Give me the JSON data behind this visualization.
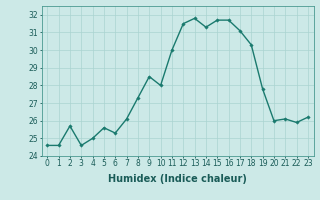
{
  "x": [
    0,
    1,
    2,
    3,
    4,
    5,
    6,
    7,
    8,
    9,
    10,
    11,
    12,
    13,
    14,
    15,
    16,
    17,
    18,
    19,
    20,
    21,
    22,
    23
  ],
  "y": [
    24.6,
    24.6,
    25.7,
    24.6,
    25.0,
    25.6,
    25.3,
    26.1,
    27.3,
    28.5,
    28.0,
    30.0,
    31.5,
    31.8,
    31.3,
    31.7,
    31.7,
    31.1,
    30.3,
    27.8,
    26.0,
    26.1,
    25.9,
    26.2
  ],
  "line_color": "#1a7a6e",
  "marker": "D",
  "marker_size": 1.8,
  "bg_color": "#cce9e7",
  "grid_color": "#aad4d1",
  "xlabel": "Humidex (Indice chaleur)",
  "ylim": [
    24,
    32.5
  ],
  "yticks": [
    24,
    25,
    26,
    27,
    28,
    29,
    30,
    31,
    32
  ],
  "xlim": [
    -0.5,
    23.5
  ],
  "xticks": [
    0,
    1,
    2,
    3,
    4,
    5,
    6,
    7,
    8,
    9,
    10,
    11,
    12,
    13,
    14,
    15,
    16,
    17,
    18,
    19,
    20,
    21,
    22,
    23
  ],
  "tick_fontsize": 5.5,
  "label_fontsize": 7.0,
  "line_width": 1.0
}
